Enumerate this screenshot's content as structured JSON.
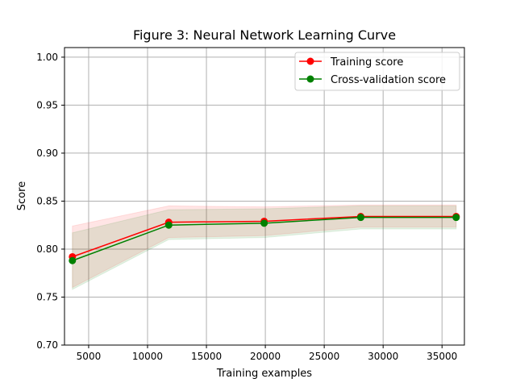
{
  "chart_data": {
    "type": "line",
    "title": "Figure 3: Neural Network Learning Curve",
    "xlabel": "Training examples",
    "ylabel": "Score",
    "xlim": [
      2950,
      36900
    ],
    "ylim": [
      0.7,
      1.01
    ],
    "xticks": [
      5000,
      10000,
      15000,
      20000,
      25000,
      30000,
      35000
    ],
    "xtick_labels": [
      "5000",
      "10000",
      "15000",
      "20000",
      "25000",
      "30000",
      "35000"
    ],
    "yticks": [
      0.7,
      0.75,
      0.8,
      0.85,
      0.9,
      0.95,
      1.0
    ],
    "ytick_labels": [
      "0.70",
      "0.75",
      "0.80",
      "0.85",
      "0.90",
      "0.95",
      "1.00"
    ],
    "grid": true,
    "legend_position": "top-right",
    "x": [
      3620,
      11800,
      19900,
      28100,
      36200
    ],
    "series": [
      {
        "name": "Training score",
        "color": "#ff0000",
        "values": [
          0.792,
          0.828,
          0.829,
          0.834,
          0.834
        ],
        "band_lower": [
          0.76,
          0.812,
          0.814,
          0.823,
          0.823
        ],
        "band_upper": [
          0.824,
          0.845,
          0.844,
          0.846,
          0.846
        ]
      },
      {
        "name": "Cross-validation score",
        "color": "#008000",
        "values": [
          0.788,
          0.825,
          0.827,
          0.833,
          0.833
        ],
        "band_lower": [
          0.758,
          0.81,
          0.812,
          0.821,
          0.821
        ],
        "band_upper": [
          0.817,
          0.841,
          0.842,
          0.845,
          0.845
        ]
      }
    ]
  }
}
